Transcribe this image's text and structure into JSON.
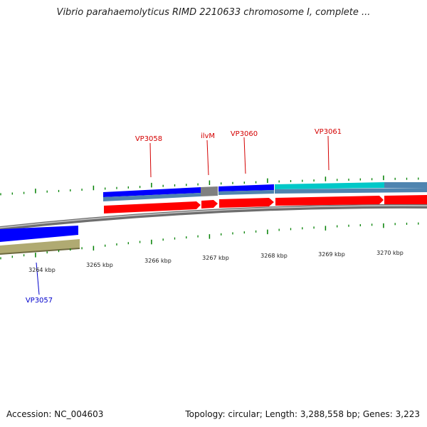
{
  "title": "Vibrio parahaemolyticus RIMD 2210633 chromosome I, complete ...",
  "footer": {
    "accession": "Accession: NC_004603",
    "topology": "Topology: circular; Length: 3,288,558 bp; Genes: 3,223"
  },
  "colors": {
    "cds_blue": "#0000ff",
    "cds_teal": "#00c8c8",
    "cds_gray": "#808080",
    "feature_steelblue": "#4f84b0",
    "gene_arrow": "#ff0000",
    "olive": "#b0aa72",
    "backbone": "#8a8a8a",
    "ticks": "#008000",
    "label_red": "#d40000",
    "label_blue": "#0000cc"
  },
  "scale": {
    "ticks": [
      "3264 kbp",
      "3265 kbp",
      "3266 kbp",
      "3267 kbp",
      "3268 kbp",
      "3269 kbp",
      "3270 kbp"
    ]
  },
  "genes": [
    {
      "name": "VP3057",
      "color_key": "label_blue"
    },
    {
      "name": "VP3058",
      "color_key": "label_red"
    },
    {
      "name": "ilvM",
      "color_key": "label_red"
    },
    {
      "name": "VP3060",
      "color_key": "label_red"
    },
    {
      "name": "VP3061",
      "color_key": "label_red"
    }
  ]
}
